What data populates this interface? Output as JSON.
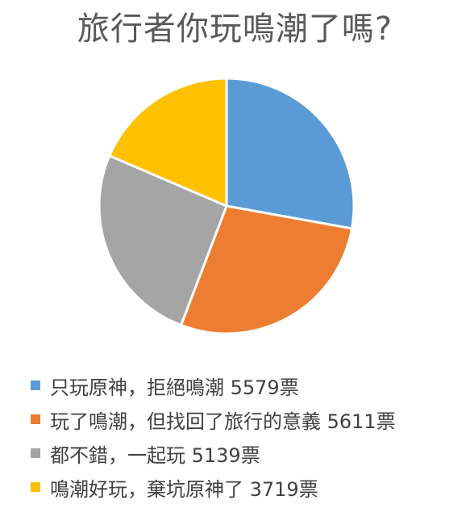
{
  "chart_data": {
    "type": "pie",
    "title": "旅行者你玩鳴潮了嗎?",
    "categories": [
      "只玩原神，拒絕鳴潮 5579票",
      "玩了鳴潮，但找回了旅行的意義 5611票",
      "都不錯，一起玩 5139票",
      "鳴潮好玩，棄坑原神了 3719票"
    ],
    "values": [
      5579,
      5611,
      5139,
      3719
    ],
    "colors": [
      "#5B9BD5",
      "#ED7D31",
      "#A5A5A5",
      "#FFC000"
    ],
    "legend_position": "bottom",
    "start_angle_deg": 0,
    "direction": "clockwise"
  }
}
